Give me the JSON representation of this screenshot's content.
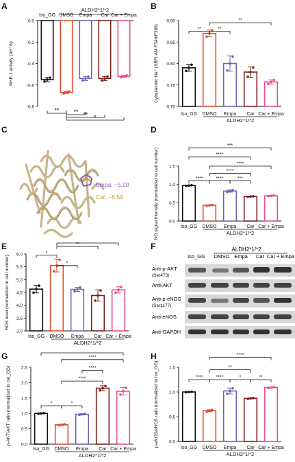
{
  "colors": {
    "iso": "#111111",
    "dmso": "#e8492b",
    "empa": "#6f63b5",
    "car": "#7a1f1a",
    "car_empa": "#e74c8b",
    "bracket": "#111111",
    "protein": "#c9b48a"
  },
  "panel_labels": [
    "A",
    "B",
    "C",
    "D",
    "E",
    "F",
    "G",
    "H"
  ],
  "panel_c": {
    "empa_label": "Empa: −5.20",
    "car_label": "Car: −5.58",
    "empa_color": "#8a5cb8",
    "car_color": "#d19a3a"
  },
  "panel_f": {
    "group_label": "ALDH2*1/*2",
    "lanes": [
      "Iso_GG",
      "DMSO",
      "Empa",
      "Car",
      "Car + Empa"
    ],
    "rows": [
      {
        "label": "Anti-p-AKT",
        "sub": "(Ser473)"
      },
      {
        "label": "Anti-AKT",
        "sub": ""
      },
      {
        "label": "Anti-p-eNOS",
        "sub": "(Ser1177)"
      },
      {
        "label": "Anti-eNOS",
        "sub": ""
      },
      {
        "label": "Anti-GAPDH",
        "sub": ""
      }
    ]
  },
  "chart_data": [
    {
      "id": "A",
      "type": "bar",
      "categories": [
        "Iso_GG",
        "DMSO",
        "Empa",
        "Car",
        "Car + Empa"
      ],
      "group_label": "ALDH2*1/*2",
      "ylabel": "NHE-1 activity (ΔH⁺/s)",
      "ylim": [
        -0.8,
        0
      ],
      "yticks": [
        "0.0",
        "-0.2",
        "-0.4",
        "-0.6",
        "-0.8"
      ],
      "values": [
        -0.55,
        -0.67,
        -0.54,
        -0.54,
        -0.52
      ],
      "errors": [
        0.02,
        0.01,
        0.02,
        0.02,
        0.01
      ],
      "sig": [
        "**",
        "**",
        "**",
        "*",
        "*",
        "*",
        "*"
      ],
      "xaxis_top": true
    },
    {
      "id": "B",
      "type": "bar",
      "categories": [
        "Iso_GG",
        "DMSO",
        "Empa",
        "Car",
        "Car + Empa"
      ],
      "group_label": "ALDH2*1/*2",
      "ylabel": "Cytoplasmic Na⁺ (SBFI-AM F340/F380)",
      "ylim": [
        0.7,
        0.9
      ],
      "yticks": [
        "0.70",
        "0.75",
        "0.80",
        "0.85",
        "0.90"
      ],
      "values": [
        0.79,
        0.87,
        0.8,
        0.78,
        0.757
      ],
      "errors": [
        0.008,
        0.008,
        0.018,
        0.012,
        0.005
      ],
      "sig": [
        "**",
        "**",
        "**"
      ]
    },
    {
      "id": "D",
      "type": "bar",
      "categories": [
        "Iso_GG",
        "DMSO",
        "Empa",
        "Car",
        "Car + Empa"
      ],
      "group_label": "ALDH2*1/*2",
      "ylabel": "NO signal intensity (normalized to cell number)",
      "ylim": [
        0,
        1.5
      ],
      "yticks": [
        "0.0",
        "0.5",
        "1.0",
        "1.5"
      ],
      "values": [
        0.97,
        0.43,
        0.82,
        0.67,
        0.69
      ],
      "errors": [
        0.01,
        0.01,
        0.03,
        0.01,
        0.01
      ],
      "sig": [
        "****",
        "****",
        "***",
        "****",
        "****",
        "****",
        "***"
      ]
    },
    {
      "id": "E",
      "type": "bar",
      "categories": [
        "Iso_GG",
        "DMSO",
        "Empa",
        "Car",
        "Car + Empa"
      ],
      "group_label": "ALDH2*1/*2",
      "ylabel": "ROS level (normalized to cell number)",
      "ylim": [
        3.0,
        6.0
      ],
      "yticks": [
        "3.0",
        "3.5",
        "4.0",
        "4.5",
        "5.0",
        "5.5",
        "6.0"
      ],
      "values": [
        4.63,
        5.55,
        4.62,
        4.38,
        4.6
      ],
      "errors": [
        0.15,
        0.25,
        0.08,
        0.22,
        0.12
      ],
      "sig": [
        "*",
        "*",
        "**",
        "*"
      ]
    },
    {
      "id": "G",
      "type": "bar",
      "categories": [
        "Iso_GG",
        "DMSO",
        "Empa",
        "Car",
        "Car + Empa"
      ],
      "group_label": "ALDH2*1/*2",
      "ylabel": "p-AKT/AKT ratio (normalized to Iso_GG)",
      "ylim": [
        0,
        2.5
      ],
      "yticks": [
        "0.0",
        "0.5",
        "1.0",
        "1.5",
        "2.0",
        "2.5"
      ],
      "values": [
        1.0,
        0.63,
        0.97,
        1.82,
        1.72
      ],
      "errors": [
        0.01,
        0.02,
        0.02,
        0.08,
        0.12
      ],
      "sig": [
        "*",
        "*",
        "****",
        "****",
        "****",
        "****"
      ]
    },
    {
      "id": "H",
      "type": "bar",
      "categories": [
        "Iso_GG",
        "DMSO",
        "Empa",
        "Car",
        "Car + Empa"
      ],
      "group_label": "ALDH2*1/*2",
      "ylabel": "p-eNOS/eNOS ratio (normalized to Iso_GG)",
      "ylim": [
        0,
        1.5
      ],
      "yticks": [
        "0.0",
        "0.5",
        "1.0",
        "1.5"
      ],
      "values": [
        1.0,
        0.62,
        1.02,
        0.87,
        1.09
      ],
      "errors": [
        0.005,
        0.02,
        0.06,
        0.01,
        0.01
      ],
      "sig": [
        "****",
        "****",
        "*",
        "**",
        "**",
        "****"
      ]
    }
  ]
}
